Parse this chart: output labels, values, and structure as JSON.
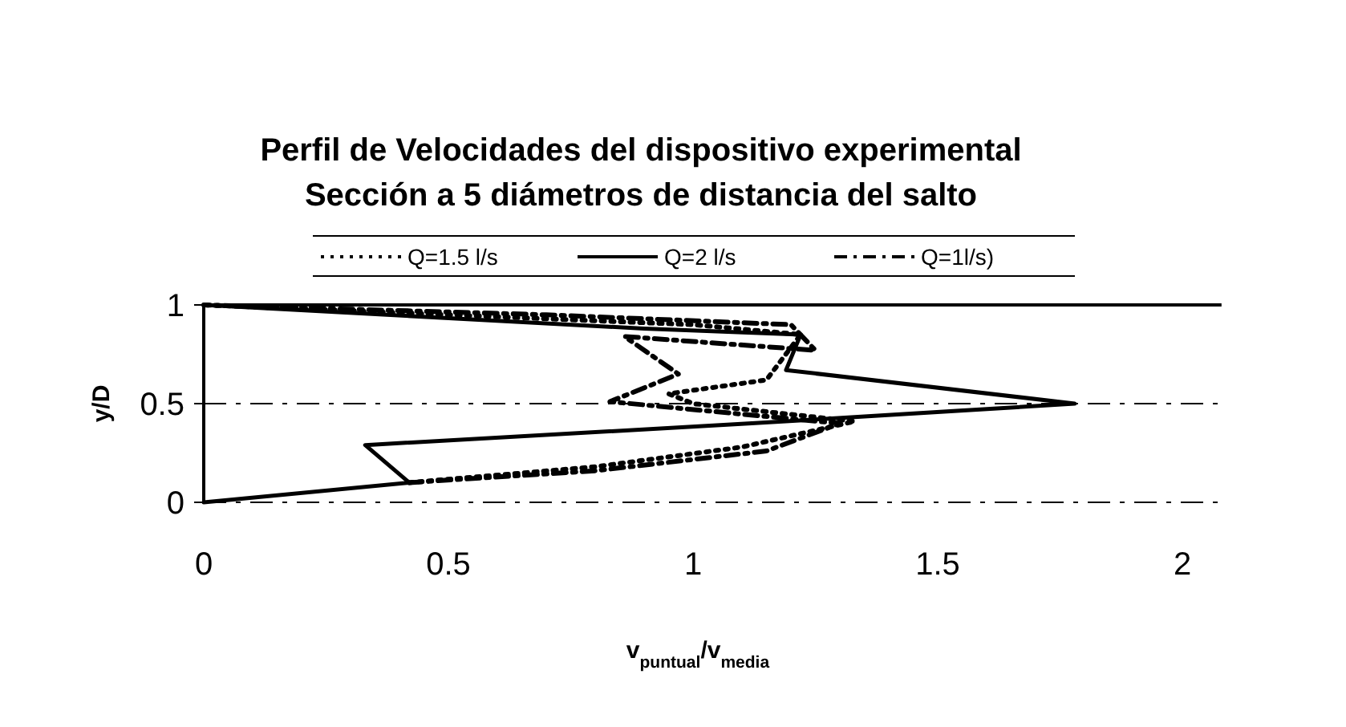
{
  "chart_data": {
    "type": "line",
    "title": "Perfil de Velocidades del dispositivo experimental",
    "subtitle": "Sección a 5 diámetros de distancia del salto",
    "xlabel": "v$_{puntual}$/v$_{media}$",
    "ylabel": "y/D",
    "xlim": [
      0,
      2.08
    ],
    "xticks": [
      0,
      0.5,
      1,
      1.5,
      2
    ],
    "ylim": [
      0,
      1
    ],
    "yticks": [
      0,
      0.5,
      1
    ],
    "grid": "y",
    "legend": "top",
    "marker": "none",
    "series": [
      {
        "name": "Q=1.5 l/s",
        "color": "#000000",
        "line_style": "dotted",
        "x": [
          0.42,
          0.8,
          1.1,
          1.33,
          1.0,
          0.95,
          1.15,
          1.22,
          1.0,
          0.5,
          0.0
        ],
        "values": [
          0.1,
          0.18,
          0.28,
          0.41,
          0.5,
          0.55,
          0.62,
          0.85,
          0.9,
          0.95,
          1.0
        ]
      },
      {
        "name": "Q=2 l/s",
        "color": "#000000",
        "line_style": "solid",
        "x": [
          0.0,
          0.42,
          0.33,
          1.12,
          1.78,
          1.19,
          1.22,
          0.9,
          0.0
        ],
        "values": [
          0.0,
          0.1,
          0.29,
          0.4,
          0.5,
          0.67,
          0.85,
          0.88,
          1.0
        ]
      },
      {
        "name": "Q=1l/s)",
        "color": "#000000",
        "line_style": "dashed",
        "x": [
          0.42,
          0.8,
          1.15,
          1.3,
          0.83,
          0.97,
          0.86,
          1.25,
          1.2,
          0.7,
          0.0
        ],
        "values": [
          0.1,
          0.16,
          0.26,
          0.4,
          0.51,
          0.65,
          0.84,
          0.77,
          0.9,
          0.95,
          1.0
        ]
      }
    ]
  }
}
